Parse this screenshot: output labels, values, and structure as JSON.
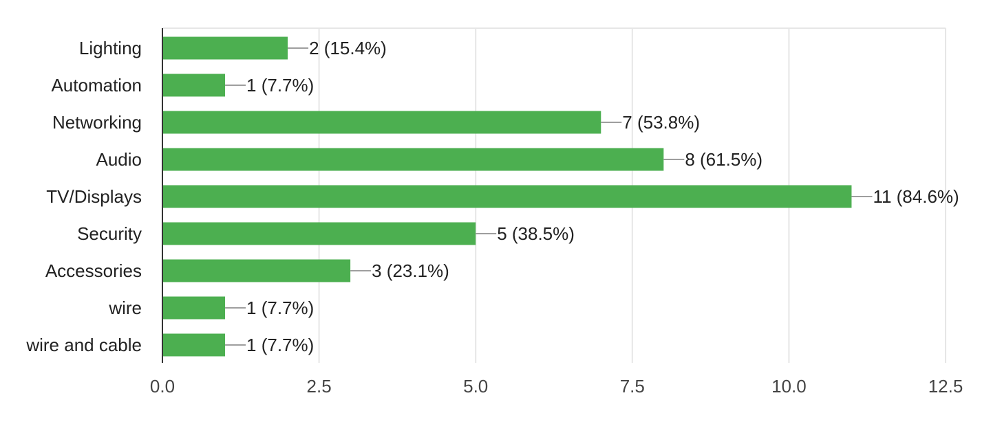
{
  "chart_data": {
    "type": "bar",
    "orientation": "horizontal",
    "categories": [
      "Lighting",
      "Automation",
      "Networking",
      "Audio",
      "TV/Displays",
      "Security",
      "Accessories",
      "wire",
      "wire and cable"
    ],
    "values": [
      2,
      1,
      7,
      8,
      11,
      5,
      3,
      1,
      1
    ],
    "data_labels": [
      "2 (15.4%)",
      "1 (7.7%)",
      "7 (53.8%)",
      "8 (61.5%)",
      "11 (84.6%)",
      "5 (38.5%)",
      "3 (23.1%)",
      "1 (7.7%)",
      "1 (7.7%)"
    ],
    "x_ticks": [
      "0.0",
      "2.5",
      "5.0",
      "7.5",
      "10.0",
      "12.5"
    ],
    "xlim": [
      0,
      12.5
    ],
    "grid": true,
    "legend": "none",
    "colors": {
      "bar": "#4caf50",
      "grid": "#e6e6e6",
      "axis": "#333333",
      "connector": "#9e9e9e"
    }
  }
}
